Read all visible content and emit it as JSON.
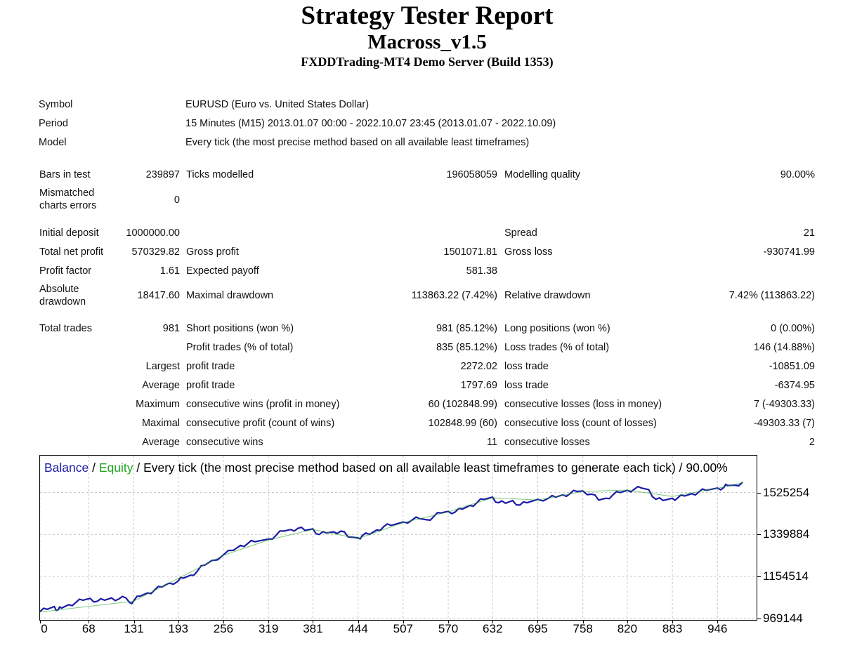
{
  "header": {
    "title": "Strategy Tester Report",
    "expert": "Macross_v1.5",
    "server": "FXDDTrading-MT4 Demo Server (Build 1353)"
  },
  "settings": {
    "symbol_label": "Symbol",
    "symbol_value": "EURUSD (Euro vs. United States Dollar)",
    "period_label": "Period",
    "period_value": "15 Minutes (M15) 2013.01.07 00:00 - 2022.10.07 23:45 (2013.01.07 - 2022.10.09)",
    "model_label": "Model",
    "model_value": "Every tick (the most precise method based on all available least timeframes)"
  },
  "stats": {
    "bars_label": "Bars in test",
    "bars_value": "239897",
    "ticks_label": "Ticks modelled",
    "ticks_value": "196058059",
    "quality_label": "Modelling quality",
    "quality_value": "90.00%",
    "mismatch_label": "Mismatched charts errors",
    "mismatch_value": "0",
    "deposit_label": "Initial deposit",
    "deposit_value": "1000000.00",
    "spread_label": "Spread",
    "spread_value": "21",
    "net_label": "Total net profit",
    "net_value": "570329.82",
    "gross_profit_label": "Gross profit",
    "gross_profit_value": "1501071.81",
    "gross_loss_label": "Gross loss",
    "gross_loss_value": "-930741.99",
    "pf_label": "Profit factor",
    "pf_value": "1.61",
    "payoff_label": "Expected payoff",
    "payoff_value": "581.38",
    "abs_dd_label": "Absolute drawdown",
    "abs_dd_value": "18417.60",
    "max_dd_label": "Maximal drawdown",
    "max_dd_value": "113863.22 (7.42%)",
    "rel_dd_label": "Relative drawdown",
    "rel_dd_value": "7.42% (113863.22)"
  },
  "trades": {
    "total_label": "Total trades",
    "total_value": "981",
    "short_label": "Short positions (won %)",
    "short_value": "981 (85.12%)",
    "long_label": "Long positions (won %)",
    "long_value": "0 (0.00%)",
    "profit_trades_label": "Profit trades (% of total)",
    "profit_trades_value": "835 (85.12%)",
    "loss_trades_label": "Loss trades (% of total)",
    "loss_trades_value": "146 (14.88%)",
    "largest_label": "Largest",
    "largest_profit_label": "profit trade",
    "largest_profit_value": "2272.02",
    "largest_loss_label": "loss trade",
    "largest_loss_value": "-10851.09",
    "average_label": "Average",
    "average_profit_label": "profit trade",
    "average_profit_value": "1797.69",
    "average_loss_label": "loss trade",
    "average_loss_value": "-6374.95",
    "maximum_label": "Maximum",
    "max_wins_label": "consecutive wins (profit in money)",
    "max_wins_value": "60 (102848.99)",
    "max_losses_label": "consecutive losses (loss in money)",
    "max_losses_value": "7 (-49303.33)",
    "maximal_label": "Maximal",
    "maximal_profit_label": "consecutive profit (count of wins)",
    "maximal_profit_value": "102848.99 (60)",
    "maximal_loss_label": "consecutive loss (count of losses)",
    "maximal_loss_value": "-49303.33 (7)",
    "avg2_label": "Average",
    "avg_wins_label": "consecutive wins",
    "avg_wins_value": "11",
    "avg_losses_label": "consecutive losses",
    "avg_losses_value": "2"
  },
  "chart": {
    "legend_balance": "Balance",
    "legend_sep1": " / ",
    "legend_equity": "Equity",
    "legend_rest": " / Every tick (the most precise method based on all available least timeframes to generate each tick) / 90.00%",
    "colors": {
      "balance": "#1a1aa8",
      "equity": "#22a422",
      "grid": "#c8c8c8"
    }
  },
  "chart_data": {
    "type": "line",
    "title": "",
    "xlabel": "",
    "ylabel": "",
    "x_ticks": [
      0,
      68,
      131,
      193,
      256,
      319,
      381,
      444,
      507,
      570,
      632,
      695,
      758,
      820,
      883,
      946
    ],
    "y_ticks": [
      969144,
      1154514,
      1339884,
      1525254
    ],
    "xlim": [
      0,
      981
    ],
    "ylim": [
      969144,
      1570329
    ],
    "grid": true,
    "series": [
      {
        "name": "Balance",
        "x": [
          0,
          10,
          20,
          25,
          30,
          40,
          50,
          60,
          70,
          80,
          90,
          100,
          110,
          120,
          125,
          131,
          140,
          150,
          160,
          170,
          180,
          193,
          200,
          210,
          220,
          230,
          240,
          256,
          270,
          280,
          290,
          300,
          319,
          330,
          340,
          350,
          360,
          370,
          381,
          390,
          400,
          410,
          420,
          430,
          444,
          450,
          460,
          470,
          480,
          490,
          507,
          520,
          530,
          540,
          550,
          560,
          570,
          580,
          590,
          600,
          610,
          620,
          632,
          640,
          650,
          660,
          670,
          680,
          695,
          710,
          720,
          730,
          740,
          750,
          758,
          770,
          780,
          790,
          800,
          810,
          820,
          830,
          840,
          850,
          860,
          870,
          883,
          890,
          900,
          910,
          920,
          930,
          946,
          955,
          960,
          970,
          981
        ],
        "y": [
          1000000,
          1010000,
          1022000,
          1007000,
          1015000,
          1030000,
          1040000,
          1050000,
          1058000,
          1045000,
          1050000,
          1060000,
          1055000,
          1060000,
          1040000,
          1048000,
          1068000,
          1082000,
          1095000,
          1108000,
          1125000,
          1135000,
          1147000,
          1160000,
          1180000,
          1205000,
          1225000,
          1250000,
          1270000,
          1292000,
          1300000,
          1308000,
          1320000,
          1338000,
          1355000,
          1362000,
          1367000,
          1358000,
          1365000,
          1340000,
          1347000,
          1352000,
          1355000,
          1330000,
          1325000,
          1335000,
          1340000,
          1360000,
          1375000,
          1380000,
          1395000,
          1405000,
          1410000,
          1405000,
          1420000,
          1435000,
          1442000,
          1440000,
          1452000,
          1468000,
          1480000,
          1495000,
          1505000,
          1480000,
          1478000,
          1490000,
          1470000,
          1480000,
          1495000,
          1500000,
          1505000,
          1515000,
          1520000,
          1530000,
          1532000,
          1518000,
          1492000,
          1500000,
          1515000,
          1525000,
          1535000,
          1540000,
          1545000,
          1538000,
          1495000,
          1490000,
          1500000,
          1500000,
          1510000,
          1520000,
          1528000,
          1535000,
          1545000,
          1548000,
          1556000,
          1558000,
          1570329
        ]
      },
      {
        "name": "Equity",
        "x": [
          0,
          131,
          256,
          319,
          381,
          444,
          507,
          570,
          632,
          695,
          758,
          820,
          883,
          946,
          981
        ],
        "y": [
          998000,
          1046000,
          1248000,
          1316000,
          1362000,
          1322000,
          1392000,
          1440000,
          1502000,
          1492000,
          1530000,
          1536000,
          1508000,
          1544000,
          1568000
        ]
      }
    ]
  }
}
